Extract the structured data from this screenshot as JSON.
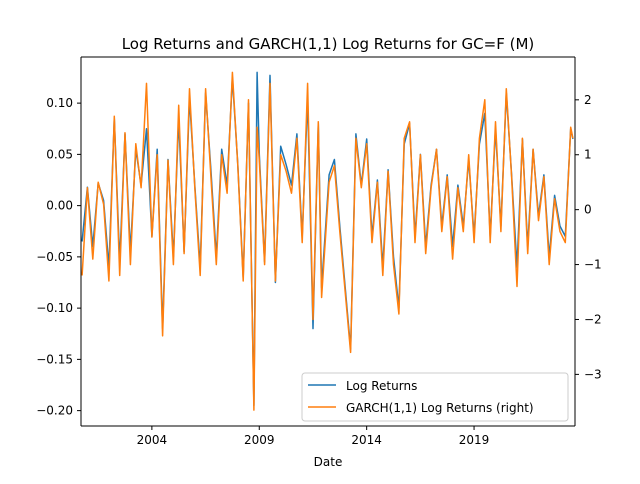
{
  "chart_data": {
    "type": "line",
    "title": "Log Returns and GARCH(1,1) Log Returns for GC=F (M)",
    "xlabel": "Date",
    "ylabel": "",
    "xlim": [
      2000.7,
      2023.7
    ],
    "ylim": [
      -0.215,
      0.145
    ],
    "y2lim": [
      -3.94,
      2.78
    ],
    "grid": false,
    "legend_position": "lower-right",
    "x_ticks": [
      {
        "value": 2004,
        "label": "2004"
      },
      {
        "value": 2009,
        "label": "2009"
      },
      {
        "value": 2014,
        "label": "2014"
      },
      {
        "value": 2019,
        "label": "2019"
      }
    ],
    "y_ticks": [
      {
        "value": 0.1,
        "label": "0.10"
      },
      {
        "value": 0.05,
        "label": "0.05"
      },
      {
        "value": 0.0,
        "label": "0.00"
      },
      {
        "value": -0.05,
        "label": "−0.05"
      },
      {
        "value": -0.1,
        "label": "−0.10"
      },
      {
        "value": -0.15,
        "label": "−0.15"
      },
      {
        "value": -0.2,
        "label": "−0.20"
      }
    ],
    "y2_ticks": [
      {
        "value": 2,
        "label": "2"
      },
      {
        "value": 1,
        "label": "1"
      },
      {
        "value": 0,
        "label": "0"
      },
      {
        "value": -1,
        "label": "−1"
      },
      {
        "value": -2,
        "label": "−2"
      },
      {
        "value": -3,
        "label": "−3"
      }
    ],
    "series": [
      {
        "name": "Log Returns",
        "axis": "left",
        "color": "#1f77b4",
        "x": [
          2000.75,
          2001.0,
          2001.25,
          2001.5,
          2001.75,
          2002.0,
          2002.25,
          2002.5,
          2002.75,
          2003.0,
          2003.25,
          2003.5,
          2003.75,
          2004.0,
          2004.25,
          2004.5,
          2004.75,
          2005.0,
          2005.25,
          2005.5,
          2005.75,
          2006.0,
          2006.25,
          2006.5,
          2006.75,
          2007.0,
          2007.25,
          2007.5,
          2007.75,
          2008.0,
          2008.25,
          2008.5,
          2008.75,
          2008.9,
          2009.0,
          2009.25,
          2009.5,
          2009.75,
          2010.0,
          2010.25,
          2010.5,
          2010.75,
          2011.0,
          2011.25,
          2011.5,
          2011.75,
          2011.9,
          2012.25,
          2012.5,
          2012.75,
          2013.0,
          2013.25,
          2013.5,
          2013.75,
          2014.0,
          2014.25,
          2014.5,
          2014.75,
          2015.0,
          2015.25,
          2015.5,
          2015.75,
          2016.0,
          2016.25,
          2016.5,
          2016.75,
          2017.0,
          2017.25,
          2017.5,
          2017.75,
          2018.0,
          2018.25,
          2018.5,
          2018.75,
          2019.0,
          2019.25,
          2019.5,
          2019.75,
          2020.0,
          2020.25,
          2020.5,
          2020.75,
          2021.0,
          2021.25,
          2021.5,
          2021.75,
          2022.0,
          2022.25,
          2022.5,
          2022.75,
          2023.0,
          2023.25,
          2023.5,
          2023.6
        ],
        "values": [
          -0.035,
          0.018,
          -0.04,
          0.022,
          0.005,
          -0.06,
          0.085,
          -0.055,
          0.07,
          -0.045,
          0.055,
          0.02,
          0.075,
          -0.03,
          0.055,
          -0.12,
          0.045,
          -0.05,
          0.085,
          -0.045,
          0.105,
          0.02,
          -0.06,
          0.11,
          0.035,
          -0.05,
          0.055,
          0.02,
          0.125,
          0.04,
          -0.07,
          0.1,
          -0.195,
          0.13,
          0.05,
          -0.055,
          0.127,
          -0.075,
          0.058,
          0.04,
          0.02,
          0.07,
          -0.03,
          0.105,
          -0.12,
          0.08,
          -0.08,
          0.03,
          0.045,
          -0.02,
          -0.08,
          -0.14,
          0.07,
          0.02,
          0.065,
          -0.03,
          0.025,
          -0.06,
          0.035,
          -0.05,
          -0.1,
          0.06,
          0.08,
          -0.03,
          0.05,
          -0.04,
          0.02,
          0.055,
          -0.02,
          0.03,
          -0.04,
          0.02,
          -0.02,
          0.045,
          -0.03,
          0.06,
          0.09,
          -0.03,
          0.075,
          -0.02,
          0.11,
          0.03,
          -0.06,
          0.065,
          -0.04,
          0.055,
          -0.01,
          0.03,
          -0.05,
          0.01,
          -0.02,
          -0.03,
          0.075,
          0.065
        ]
      },
      {
        "name": "GARCH(1,1) Log Returns (right)",
        "axis": "right",
        "color": "#ff7f0e",
        "x": [
          2000.75,
          2001.0,
          2001.25,
          2001.5,
          2001.75,
          2002.0,
          2002.25,
          2002.5,
          2002.75,
          2003.0,
          2003.25,
          2003.5,
          2003.75,
          2004.0,
          2004.25,
          2004.5,
          2004.75,
          2005.0,
          2005.25,
          2005.5,
          2005.75,
          2006.0,
          2006.25,
          2006.5,
          2006.75,
          2007.0,
          2007.25,
          2007.5,
          2007.75,
          2008.0,
          2008.25,
          2008.5,
          2008.75,
          2008.9,
          2009.0,
          2009.25,
          2009.5,
          2009.75,
          2010.0,
          2010.25,
          2010.5,
          2010.75,
          2011.0,
          2011.25,
          2011.5,
          2011.75,
          2011.9,
          2012.25,
          2012.5,
          2012.75,
          2013.0,
          2013.25,
          2013.5,
          2013.75,
          2014.0,
          2014.25,
          2014.5,
          2014.75,
          2015.0,
          2015.25,
          2015.5,
          2015.75,
          2016.0,
          2016.25,
          2016.5,
          2016.75,
          2017.0,
          2017.25,
          2017.5,
          2017.75,
          2018.0,
          2018.25,
          2018.5,
          2018.75,
          2019.0,
          2019.25,
          2019.5,
          2019.75,
          2020.0,
          2020.25,
          2020.5,
          2020.75,
          2021.0,
          2021.25,
          2021.5,
          2021.75,
          2022.0,
          2022.25,
          2022.5,
          2022.75,
          2023.0,
          2023.25,
          2023.5,
          2023.6
        ],
        "values": [
          -1.2,
          0.4,
          -0.9,
          0.5,
          0.1,
          -1.3,
          1.7,
          -1.2,
          1.4,
          -1.0,
          1.2,
          0.4,
          2.3,
          -0.5,
          1.0,
          -2.3,
          0.9,
          -1.0,
          1.9,
          -0.8,
          2.2,
          0.4,
          -1.2,
          2.2,
          0.6,
          -1.0,
          1.0,
          0.3,
          2.5,
          0.8,
          -1.3,
          2.0,
          -3.65,
          1.5,
          0.9,
          -1.0,
          2.3,
          -1.3,
          1.0,
          0.7,
          0.3,
          1.3,
          -0.6,
          2.3,
          -2.0,
          1.6,
          -1.6,
          0.5,
          0.8,
          -0.4,
          -1.5,
          -2.6,
          1.3,
          0.4,
          1.2,
          -0.6,
          0.5,
          -1.2,
          0.7,
          -1.0,
          -1.9,
          1.3,
          1.6,
          -0.6,
          1.0,
          -0.8,
          0.4,
          1.1,
          -0.4,
          0.6,
          -0.9,
          0.4,
          -0.4,
          1.0,
          -0.6,
          1.3,
          2.0,
          -0.6,
          1.6,
          -0.4,
          2.2,
          0.6,
          -1.4,
          1.3,
          -0.8,
          1.1,
          -0.2,
          0.6,
          -1.0,
          0.2,
          -0.4,
          -0.6,
          1.5,
          1.3
        ]
      }
    ]
  }
}
